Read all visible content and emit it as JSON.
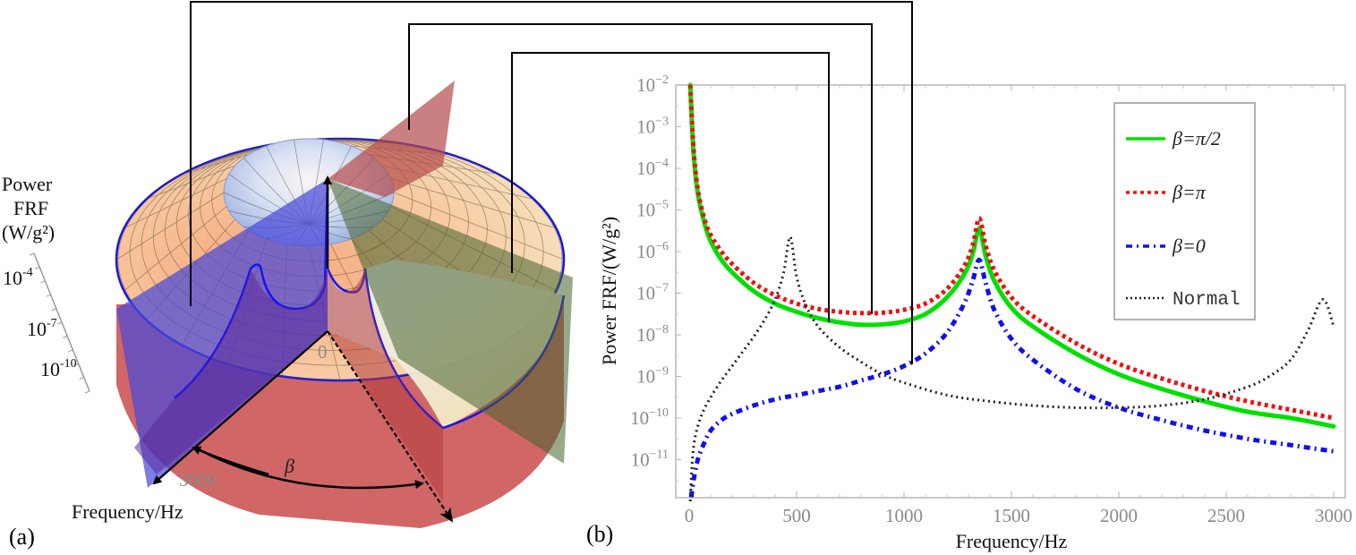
{
  "panels": {
    "a": {
      "label": "(a)",
      "z_axis_title_lines": [
        "Power",
        "FRF",
        "(W/g²)"
      ],
      "z_ticks": [
        {
          "base": "10",
          "exp": "-4"
        },
        {
          "base": "10",
          "exp": "-7"
        },
        {
          "base": "10",
          "exp": "-10"
        }
      ],
      "origin_label": "0",
      "freq_end_label": "3000",
      "freq_axis_title": "Frequency/Hz",
      "angle_label": "β",
      "colors": {
        "surface_warm": "#f3b98a",
        "surface_cool": "#c9d6ef",
        "cut_blue": "#4a4ad8",
        "cut_red": "#c94848",
        "plane_green": "#4f6b3a",
        "plane_red": "#b34a4a",
        "edge_blue": "#1010ee"
      }
    },
    "b": {
      "label": "(b)"
    }
  },
  "connectors": [
    {
      "name": "normal-section",
      "target_freq_hz": 1040
    },
    {
      "name": "beta-pi-section",
      "target_freq_hz": 850
    },
    {
      "name": "beta-pi2-section",
      "target_freq_hz": 650
    }
  ],
  "chart_data": {
    "type": "line",
    "title": "",
    "xlabel": "Frequency/Hz",
    "ylabel": "Power FRF/(W/g²)",
    "xscale": "linear",
    "yscale": "log",
    "xlim": [
      -30,
      3050
    ],
    "ylim": [
      1.2e-12,
      0.01
    ],
    "x_ticks": [
      0,
      500,
      1000,
      1500,
      2000,
      2500,
      3000
    ],
    "x_tick_labels": [
      "0",
      "500",
      "1000",
      "1500",
      "2000",
      "2500",
      "3000"
    ],
    "y_ticks_exp": [
      -2,
      -3,
      -4,
      -5,
      -6,
      -7,
      -8,
      -9,
      -10,
      -11
    ],
    "y_tick_base": "10",
    "grid": false,
    "legend_position": "top-right",
    "series": [
      {
        "name": "β=π/2",
        "legend_label": "β=π/2",
        "color": "#00e000",
        "style": "solid",
        "x": [
          5,
          20,
          40,
          70,
          100,
          150,
          200,
          300,
          400,
          500,
          600,
          700,
          800,
          900,
          1000,
          1100,
          1200,
          1280,
          1320,
          1350,
          1380,
          1420,
          1500,
          1600,
          1800,
          2000,
          2200,
          2400,
          2600,
          2800,
          3000
        ],
        "logy": [
          -2.0,
          -3.6,
          -4.6,
          -5.3,
          -5.75,
          -6.2,
          -6.5,
          -6.95,
          -7.25,
          -7.45,
          -7.6,
          -7.7,
          -7.76,
          -7.75,
          -7.68,
          -7.5,
          -7.1,
          -6.55,
          -6.05,
          -5.45,
          -6.1,
          -6.7,
          -7.35,
          -7.8,
          -8.45,
          -8.95,
          -9.3,
          -9.6,
          -9.85,
          -10.0,
          -10.2
        ]
      },
      {
        "name": "β=π",
        "legend_label": "β=π",
        "color": "#ee1111",
        "style": "dotted",
        "x": [
          5,
          20,
          40,
          70,
          100,
          150,
          200,
          300,
          400,
          500,
          600,
          700,
          800,
          900,
          1000,
          1100,
          1200,
          1280,
          1320,
          1350,
          1380,
          1420,
          1500,
          1600,
          1800,
          2000,
          2200,
          2400,
          2600,
          2800,
          3000
        ],
        "logy": [
          -2.0,
          -3.5,
          -4.5,
          -5.2,
          -5.6,
          -6.0,
          -6.3,
          -6.75,
          -7.05,
          -7.25,
          -7.38,
          -7.45,
          -7.48,
          -7.47,
          -7.4,
          -7.25,
          -6.9,
          -6.35,
          -5.85,
          -5.2,
          -5.85,
          -6.45,
          -7.1,
          -7.55,
          -8.2,
          -8.7,
          -9.05,
          -9.35,
          -9.6,
          -9.8,
          -10.0
        ]
      },
      {
        "name": "β=0",
        "legend_label": "β=0",
        "color": "#1010ee",
        "style": "dashdot",
        "x": [
          10,
          20,
          40,
          70,
          100,
          150,
          200,
          300,
          400,
          500,
          600,
          700,
          800,
          900,
          1000,
          1100,
          1200,
          1280,
          1320,
          1350,
          1380,
          1420,
          1500,
          1600,
          1800,
          2000,
          2200,
          2400,
          2600,
          2800,
          3000
        ],
        "logy": [
          -11.9,
          -11.5,
          -11.0,
          -10.6,
          -10.3,
          -10.05,
          -9.9,
          -9.7,
          -9.55,
          -9.45,
          -9.35,
          -9.25,
          -9.1,
          -8.95,
          -8.75,
          -8.45,
          -7.95,
          -7.25,
          -6.7,
          -6.2,
          -6.75,
          -7.4,
          -8.1,
          -8.6,
          -9.3,
          -9.75,
          -10.05,
          -10.3,
          -10.5,
          -10.65,
          -10.8
        ]
      },
      {
        "name": "Normal",
        "legend_label": "Normal",
        "color": "#222222",
        "style": "dotted",
        "x": [
          5,
          15,
          30,
          60,
          100,
          150,
          200,
          250,
          300,
          350,
          400,
          440,
          470,
          500,
          540,
          600,
          700,
          800,
          900,
          1000,
          1200,
          1400,
          1600,
          1800,
          2000,
          2200,
          2400,
          2600,
          2700,
          2800,
          2880,
          2950,
          3000
        ],
        "logy": [
          -12.0,
          -11.0,
          -10.4,
          -9.9,
          -9.5,
          -9.1,
          -8.75,
          -8.4,
          -8.05,
          -7.65,
          -7.15,
          -6.5,
          -5.65,
          -6.6,
          -7.25,
          -7.8,
          -8.3,
          -8.65,
          -8.95,
          -9.15,
          -9.45,
          -9.6,
          -9.7,
          -9.75,
          -9.75,
          -9.7,
          -9.55,
          -9.25,
          -9.0,
          -8.6,
          -7.9,
          -7.15,
          -7.8
        ]
      }
    ]
  }
}
